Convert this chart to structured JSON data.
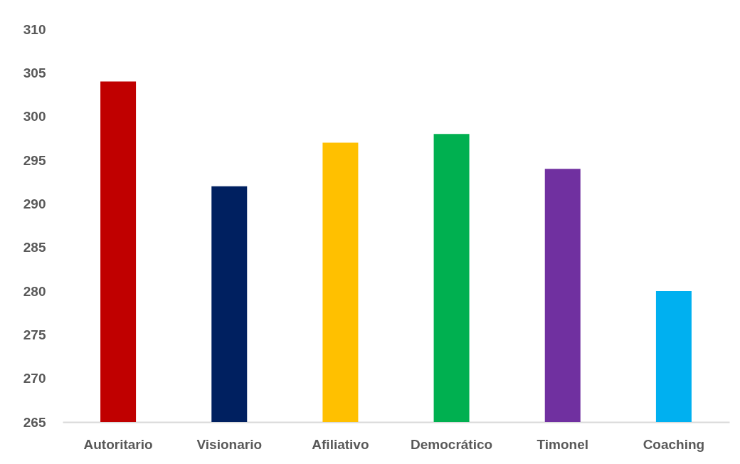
{
  "chart_data": {
    "type": "bar",
    "categories": [
      "Autoritario",
      "Visionario",
      "Afiliativo",
      "Democrático",
      "Timonel",
      "Coaching"
    ],
    "values": [
      304,
      292,
      297,
      298,
      294,
      280
    ],
    "colors": [
      "#c00000",
      "#002060",
      "#ffc000",
      "#00b050",
      "#7030a0",
      "#00b0f0"
    ],
    "ylim": [
      265,
      310
    ],
    "yticks": [
      265,
      270,
      275,
      280,
      285,
      290,
      295,
      300,
      305,
      310
    ]
  }
}
